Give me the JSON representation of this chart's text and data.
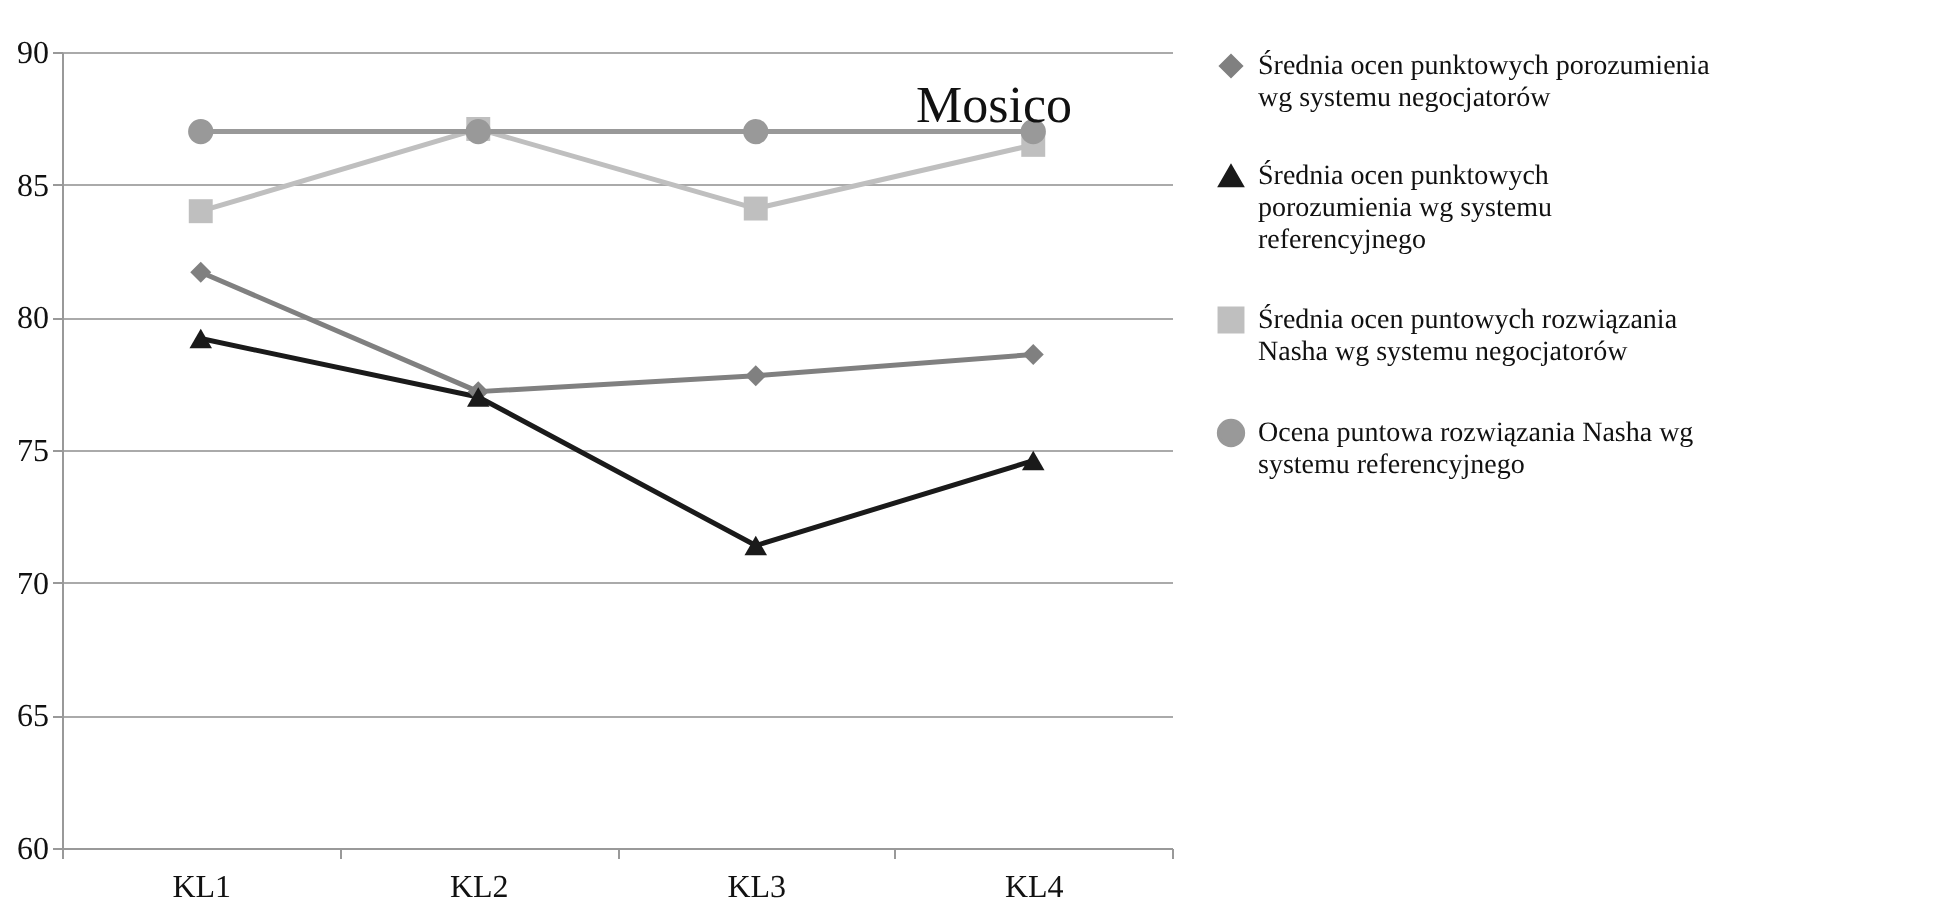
{
  "chart_data": {
    "type": "line",
    "title": "Mosico",
    "categories": [
      "KL1",
      "KL2",
      "KL3",
      "KL4"
    ],
    "series": [
      {
        "name": "Średnia ocen punktowych porozumienia wg systemu negocjatorów",
        "color": "#808080",
        "marker": "diamond",
        "values": [
          81.7,
          77.2,
          77.8,
          78.6
        ]
      },
      {
        "name": "Średnia  ocen punktowych porozumienia wg systemu referencyjnego",
        "color": "#1a1a1a",
        "marker": "triangle",
        "values": [
          79.2,
          77.0,
          71.4,
          74.6
        ]
      },
      {
        "name": "Średnia ocen puntowych rozwiązania Nasha wg systemu negocjatorów",
        "color": "#bfbfbf",
        "marker": "square",
        "values": [
          84.0,
          87.1,
          84.1,
          86.5
        ]
      },
      {
        "name": "Ocena puntowa rozwiązania Nasha wg systemu referencyjnego",
        "color": "#999999",
        "marker": "circle",
        "values": [
          87.0,
          87.0,
          87.0,
          87.0
        ]
      }
    ],
    "ylim": [
      60,
      90
    ],
    "yticks": [
      60,
      65,
      70,
      75,
      80,
      85,
      90
    ],
    "grid": "y",
    "legend": "right"
  }
}
